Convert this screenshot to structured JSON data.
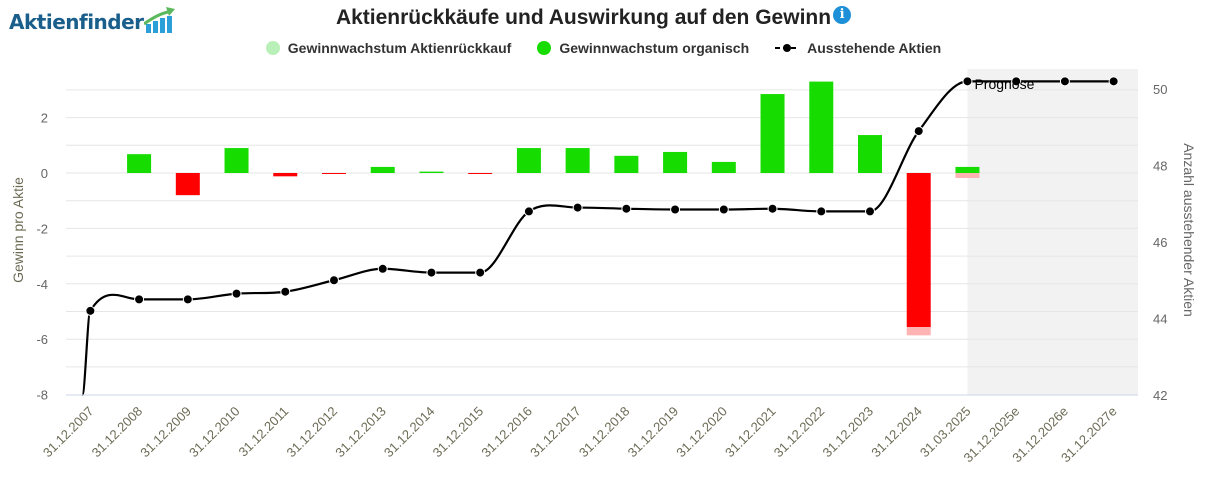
{
  "logo": {
    "text": "Aktienfinder"
  },
  "info_icon": "info-icon",
  "chart_data": {
    "type": "bar",
    "title": "Aktienrückkäufe und Auswirkung auf den Gewinn",
    "legend_position": "top",
    "categories": [
      "31.12.2007",
      "31.12.2008",
      "31.12.2009",
      "31.12.2010",
      "31.12.2011",
      "31.12.2012",
      "31.12.2013",
      "31.12.2014",
      "31.12.2015",
      "31.12.2016",
      "31.12.2017",
      "31.12.2018",
      "31.12.2019",
      "31.12.2020",
      "31.12.2021",
      "31.12.2022",
      "31.12.2023",
      "31.12.2024",
      "31.03.2025",
      "31.12.2025e",
      "31.12.2026e",
      "31.12.2027e"
    ],
    "series": [
      {
        "name": "Gewinnwachstum Aktienrückkauf",
        "type": "bar",
        "color": "#b8f0b8",
        "negative_color": "#ffb3b3",
        "axis": "left",
        "values": [
          null,
          0,
          0,
          0,
          0,
          0,
          0,
          0,
          0,
          0,
          0,
          0,
          0,
          0,
          0,
          0,
          0,
          -0.3,
          -0.18,
          null,
          null,
          null
        ]
      },
      {
        "name": "Gewinnwachstum organisch",
        "type": "bar",
        "color": "#16dc00",
        "negative_color": "#ff0000",
        "axis": "left",
        "values": [
          null,
          0.68,
          -0.8,
          0.9,
          -0.12,
          -0.03,
          0.22,
          0.05,
          -0.03,
          0.9,
          0.9,
          0.62,
          0.76,
          0.4,
          2.85,
          3.3,
          1.37,
          -5.56,
          0.22,
          null,
          null,
          null
        ]
      },
      {
        "name": "Ausstehende Aktien",
        "type": "line",
        "color": "#000000",
        "axis": "right",
        "values": [
          44.2,
          44.5,
          44.5,
          44.65,
          44.7,
          45.0,
          45.3,
          45.2,
          45.2,
          46.8,
          46.9,
          46.87,
          46.85,
          46.85,
          46.87,
          46.8,
          46.8,
          48.9,
          50.2,
          50.2,
          50.2,
          50.2
        ]
      }
    ],
    "y_left": {
      "label": "Gewinn pro Aktie",
      "ylim": [
        -8,
        3.8
      ],
      "ticks": [
        2,
        0,
        -2,
        -4,
        -6,
        -8
      ]
    },
    "y_right": {
      "label": "Anzahl ausstehender Aktien",
      "ylim": [
        42,
        50.8
      ],
      "ticks": [
        50,
        48,
        46,
        44,
        42
      ]
    },
    "forecast": {
      "label": "Prognose",
      "start_category": "31.03.2025"
    },
    "grid": true
  }
}
